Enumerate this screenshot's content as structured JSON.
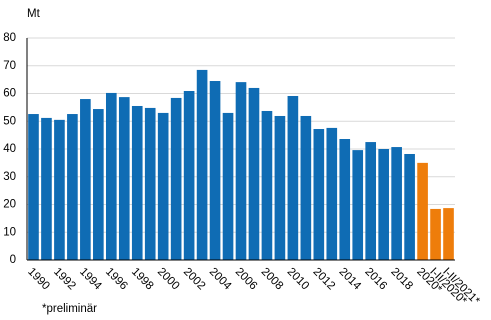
{
  "chart_data": {
    "type": "bar",
    "y_label": "Mt",
    "note": "*preliminär",
    "categories": [
      "1990",
      null,
      "1992",
      null,
      "1994",
      null,
      "1996",
      null,
      "1998",
      null,
      "2000",
      null,
      "2002",
      null,
      "2004",
      null,
      "2006",
      null,
      "2008",
      null,
      "2010",
      null,
      "2012",
      null,
      "2014",
      null,
      "2016",
      null,
      "2018",
      null,
      "2020*",
      "I-II/2020*",
      "I-II/2021*"
    ],
    "values": [
      52.6,
      51.2,
      50.5,
      52.6,
      58,
      54.4,
      60.2,
      58.7,
      55.5,
      54.8,
      53,
      58.4,
      60.9,
      68.5,
      64.5,
      53,
      64.1,
      62,
      53.7,
      51.9,
      59.1,
      51.9,
      47.2,
      47.6,
      43.6,
      39.6,
      42.5,
      40,
      40.7,
      38.2,
      35,
      18.4,
      18.7
    ],
    "colors": [
      "#0f6cb4",
      "#0f6cb4",
      "#0f6cb4",
      "#0f6cb4",
      "#0f6cb4",
      "#0f6cb4",
      "#0f6cb4",
      "#0f6cb4",
      "#0f6cb4",
      "#0f6cb4",
      "#0f6cb4",
      "#0f6cb4",
      "#0f6cb4",
      "#0f6cb4",
      "#0f6cb4",
      "#0f6cb4",
      "#0f6cb4",
      "#0f6cb4",
      "#0f6cb4",
      "#0f6cb4",
      "#0f6cb4",
      "#0f6cb4",
      "#0f6cb4",
      "#0f6cb4",
      "#0f6cb4",
      "#0f6cb4",
      "#0f6cb4",
      "#0f6cb4",
      "#0f6cb4",
      "#0f6cb4",
      "#ee7d0b",
      "#ee7d0b",
      "#ee7d0b"
    ],
    "ylim": [
      0,
      80
    ],
    "yticks": [
      0,
      10,
      20,
      30,
      40,
      50,
      60,
      70,
      80
    ],
    "grid": true
  }
}
